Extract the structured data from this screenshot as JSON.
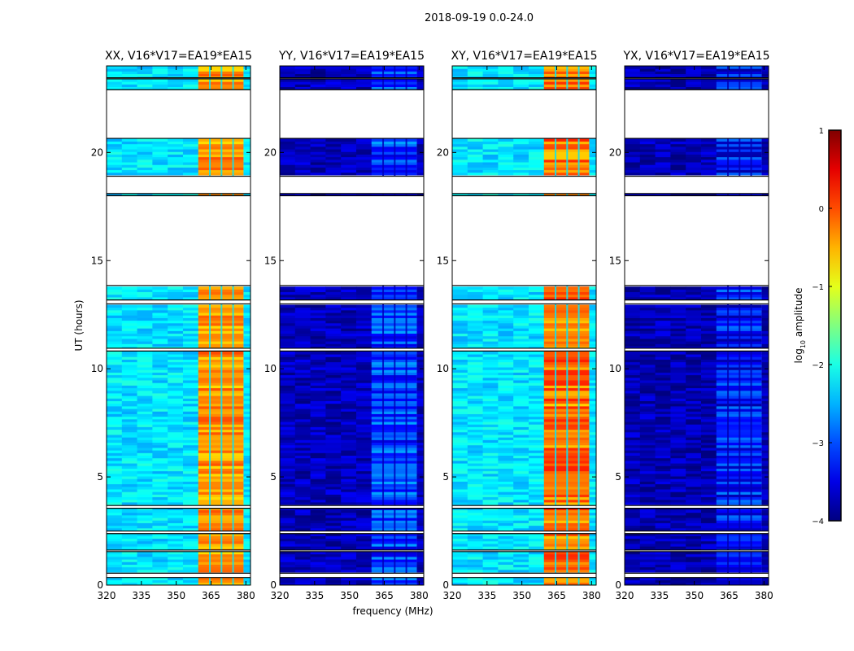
{
  "figure": {
    "suptitle": "2018-09-19 0.0-24.0",
    "xlabel": "frequency (MHz)",
    "ylabel": "UT (hours)"
  },
  "chart_data": {
    "type": "heatmap",
    "xlim": [
      320,
      382
    ],
    "ylim": [
      0,
      24
    ],
    "xticks": [
      320,
      335,
      350,
      365,
      380
    ],
    "yticks": [
      0,
      5,
      10,
      15,
      20
    ],
    "colormap": "jet",
    "rfi_band_mhz": [
      359.5,
      379
    ],
    "rfi_subchannel_gaps_mhz": [
      364.5,
      369.5,
      374.5
    ],
    "gap_intervals_ut_hours": [
      [
        0.35,
        0.55
      ],
      [
        1.55,
        1.62
      ],
      [
        2.38,
        2.5
      ],
      [
        3.55,
        3.68
      ],
      [
        10.82,
        10.95
      ],
      [
        13.0,
        13.18
      ],
      [
        13.85,
        18.0
      ],
      [
        18.1,
        18.9
      ],
      [
        20.65,
        22.9
      ],
      [
        23.4,
        23.45
      ]
    ],
    "panels": [
      {
        "title": "XX, V16*V17=EA19*EA15",
        "background_level": 0.35,
        "band_level": 0.7,
        "band_peak": 0.85
      },
      {
        "title": "YY, V16*V17=EA19*EA15",
        "background_level": 0.06,
        "band_level": 0.15,
        "band_peak": 0.35
      },
      {
        "title": "XY, V16*V17=EA19*EA15",
        "background_level": 0.35,
        "band_level": 0.72,
        "band_peak": 0.9
      },
      {
        "title": "YX, V16*V17=EA19*EA15",
        "background_level": 0.05,
        "band_level": 0.1,
        "band_peak": 0.32
      }
    ],
    "colorbar": {
      "label": "log10 amplitude",
      "label_main": "log",
      "label_sub": "10",
      "label_rest": " amplitude",
      "range": [
        -4,
        1
      ],
      "ticks": [
        -4,
        -3,
        -2,
        -1,
        0,
        1
      ],
      "tick_labels": [
        "−4",
        "−3",
        "−2",
        "−1",
        "0",
        "1"
      ]
    }
  }
}
